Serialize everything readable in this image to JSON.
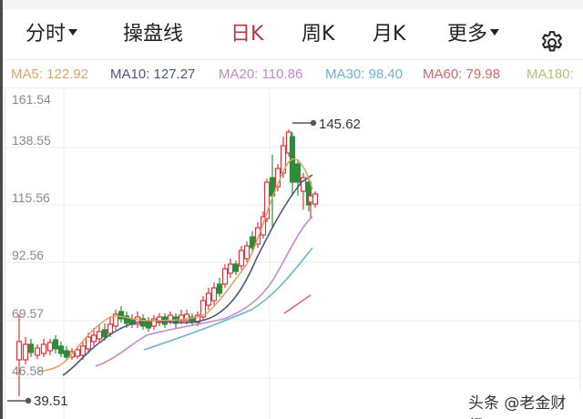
{
  "tabs": [
    {
      "label": "分时",
      "has_caret": true,
      "active": false
    },
    {
      "label": "操盘线",
      "has_caret": false,
      "active": false
    },
    {
      "label": "日K",
      "has_caret": false,
      "active": true
    },
    {
      "label": "周K",
      "has_caret": false,
      "active": false
    },
    {
      "label": "月K",
      "has_caret": false,
      "active": false
    },
    {
      "label": "更多",
      "has_caret": true,
      "active": false
    }
  ],
  "settings_icon": "gear-icon",
  "ma_legend": [
    {
      "label": "MA5: 122.92",
      "color": "#d9a56a"
    },
    {
      "label": "MA10: 127.27",
      "color": "#4a5a7a"
    },
    {
      "label": "MA20: 110.86",
      "color": "#c489c8"
    },
    {
      "label": "MA30: 98.40",
      "color": "#6fb3cf"
    },
    {
      "label": "MA60: 79.98",
      "color": "#cf6a6a"
    },
    {
      "label": "MA180:",
      "color": "#a9c77a"
    }
  ],
  "y_axis": [
    "161.54",
    "138.55",
    "115.56",
    "92.56",
    "69.57",
    "46.58"
  ],
  "max_marker": "145.62",
  "min_marker": "39.51",
  "watermark": "头条 @老金财经",
  "colors": {
    "up": "#d9363e",
    "down": "#2e8b3a",
    "active_tab": "#b8373a",
    "grid": "#ececec"
  },
  "chart_data": {
    "type": "candlestick",
    "title": "日K",
    "y_ticks": [
      161.54,
      138.55,
      115.56,
      92.56,
      69.57,
      46.58
    ],
    "ylim": [
      39.51,
      161.54
    ],
    "high_label": 145.62,
    "low_label": 39.51,
    "moving_averages": {
      "MA5": 122.92,
      "MA10": 127.27,
      "MA20": 110.86,
      "MA30": 98.4,
      "MA60": 79.98
    }
  }
}
